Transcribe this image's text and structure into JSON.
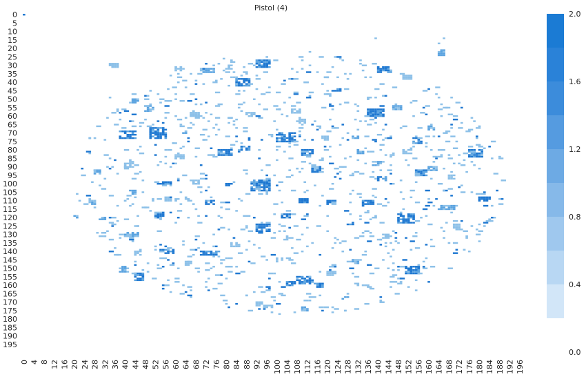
{
  "chart_data": {
    "type": "heatmap",
    "title": "Pistol (4)",
    "x_tick_labels": [
      "0",
      "4",
      "8",
      "12",
      "16",
      "20",
      "24",
      "28",
      "32",
      "36",
      "40",
      "44",
      "48",
      "52",
      "56",
      "60",
      "64",
      "68",
      "72",
      "76",
      "80",
      "84",
      "88",
      "92",
      "96",
      "100",
      "104",
      "108",
      "112",
      "116",
      "120",
      "124",
      "128",
      "132",
      "136",
      "140",
      "144",
      "148",
      "152",
      "156",
      "160",
      "164",
      "168",
      "172",
      "176",
      "180",
      "184",
      "188",
      "192",
      "196"
    ],
    "y_tick_labels": [
      "0",
      "5",
      "10",
      "15",
      "20",
      "25",
      "30",
      "35",
      "40",
      "45",
      "50",
      "55",
      "60",
      "65",
      "70",
      "75",
      "80",
      "85",
      "90",
      "95",
      "100",
      "105",
      "110",
      "115",
      "120",
      "125",
      "130",
      "135",
      "140",
      "145",
      "150",
      "155",
      "160",
      "165",
      "170",
      "175",
      "180",
      "185",
      "190",
      "195"
    ],
    "x_range": [
      0,
      199
    ],
    "y_range": [
      0,
      199
    ],
    "colorbar": {
      "min": 0.0,
      "max": 2.0,
      "tick_labels": [
        "0.0",
        "0.4",
        "0.8",
        "1.2",
        "1.6",
        "2.0"
      ],
      "colors": [
        "#d2e6f8",
        "#b8d7f3",
        "#9fc8ee",
        "#86b9e9",
        "#6daae4",
        "#559be0",
        "#3c8cdb",
        "#2a82d8",
        "#1b7bd4"
      ]
    },
    "cell_colors": {
      "low": "#8cc0e8",
      "mid": "#5aa3e0",
      "high": "#1f78d1"
    },
    "clusters": [
      {
        "x": 34,
        "y": 29,
        "w": 4,
        "h": 3,
        "v": 1.0
      },
      {
        "x": 43,
        "y": 50,
        "w": 3,
        "h": 3,
        "v": 1.2
      },
      {
        "x": 48,
        "y": 54,
        "w": 4,
        "h": 4,
        "v": 1.3
      },
      {
        "x": 38,
        "y": 69,
        "w": 7,
        "h": 5,
        "v": 1.8
      },
      {
        "x": 50,
        "y": 67,
        "w": 7,
        "h": 7,
        "v": 2.0
      },
      {
        "x": 60,
        "y": 31,
        "w": 4,
        "h": 3,
        "v": 1.0
      },
      {
        "x": 71,
        "y": 32,
        "w": 5,
        "h": 3,
        "v": 1.3
      },
      {
        "x": 80,
        "y": 30,
        "w": 3,
        "h": 3,
        "v": 1.0
      },
      {
        "x": 92,
        "y": 27,
        "w": 6,
        "h": 5,
        "v": 1.9
      },
      {
        "x": 84,
        "y": 38,
        "w": 6,
        "h": 5,
        "v": 1.9
      },
      {
        "x": 100,
        "y": 70,
        "w": 8,
        "h": 6,
        "v": 2.0
      },
      {
        "x": 110,
        "y": 80,
        "w": 5,
        "h": 4,
        "v": 1.8
      },
      {
        "x": 90,
        "y": 98,
        "w": 8,
        "h": 7,
        "v": 2.0
      },
      {
        "x": 92,
        "y": 124,
        "w": 6,
        "h": 5,
        "v": 1.8
      },
      {
        "x": 108,
        "y": 155,
        "w": 7,
        "h": 5,
        "v": 1.9
      },
      {
        "x": 115,
        "y": 159,
        "w": 4,
        "h": 3,
        "v": 1.9
      },
      {
        "x": 140,
        "y": 31,
        "w": 6,
        "h": 4,
        "v": 1.9
      },
      {
        "x": 136,
        "y": 56,
        "w": 7,
        "h": 5,
        "v": 1.7
      },
      {
        "x": 154,
        "y": 73,
        "w": 4,
        "h": 4,
        "v": 1.8
      },
      {
        "x": 176,
        "y": 80,
        "w": 6,
        "h": 5,
        "v": 1.9
      },
      {
        "x": 155,
        "y": 92,
        "w": 5,
        "h": 4,
        "v": 1.8
      },
      {
        "x": 148,
        "y": 118,
        "w": 7,
        "h": 6,
        "v": 1.9
      },
      {
        "x": 151,
        "y": 149,
        "w": 6,
        "h": 5,
        "v": 1.8
      },
      {
        "x": 134,
        "y": 110,
        "w": 5,
        "h": 4,
        "v": 1.7
      },
      {
        "x": 44,
        "y": 153,
        "w": 4,
        "h": 5,
        "v": 1.8
      },
      {
        "x": 54,
        "y": 139,
        "w": 6,
        "h": 3,
        "v": 1.8
      },
      {
        "x": 70,
        "y": 140,
        "w": 8,
        "h": 3,
        "v": 1.7
      },
      {
        "x": 77,
        "y": 80,
        "w": 6,
        "h": 4,
        "v": 1.7
      },
      {
        "x": 86,
        "y": 78,
        "w": 4,
        "h": 3,
        "v": 1.8
      },
      {
        "x": 72,
        "y": 110,
        "w": 4,
        "h": 3,
        "v": 1.7
      },
      {
        "x": 120,
        "y": 110,
        "w": 4,
        "h": 3,
        "v": 1.6
      },
      {
        "x": 109,
        "y": 109,
        "w": 4,
        "h": 3,
        "v": 1.7
      },
      {
        "x": 114,
        "y": 90,
        "w": 4,
        "h": 4,
        "v": 1.6
      },
      {
        "x": 140,
        "y": 96,
        "w": 4,
        "h": 3,
        "v": 1.8
      },
      {
        "x": 164,
        "y": 113,
        "w": 7,
        "h": 3,
        "v": 1.4
      },
      {
        "x": 180,
        "y": 108,
        "w": 5,
        "h": 3,
        "v": 1.8
      },
      {
        "x": 55,
        "y": 99,
        "w": 4,
        "h": 2,
        "v": 1.8
      },
      {
        "x": 52,
        "y": 117,
        "w": 4,
        "h": 4,
        "v": 1.6
      },
      {
        "x": 40,
        "y": 129,
        "w": 6,
        "h": 3,
        "v": 1.3
      },
      {
        "x": 38,
        "y": 149,
        "w": 4,
        "h": 4,
        "v": 1.2
      },
      {
        "x": 102,
        "y": 118,
        "w": 4,
        "h": 3,
        "v": 1.6
      },
      {
        "x": 104,
        "y": 158,
        "w": 4,
        "h": 3,
        "v": 1.8
      },
      {
        "x": 128,
        "y": 123,
        "w": 3,
        "h": 2,
        "v": 1.8
      },
      {
        "x": 62,
        "y": 69,
        "w": 3,
        "h": 2,
        "v": 1.5
      },
      {
        "x": 96,
        "y": 161,
        "w": 2,
        "h": 2,
        "v": 1.8
      },
      {
        "x": 124,
        "y": 44,
        "w": 2,
        "h": 2,
        "v": 1.8
      },
      {
        "x": 164,
        "y": 21,
        "w": 3,
        "h": 4,
        "v": 1.4
      },
      {
        "x": 20,
        "y": 119,
        "w": 2,
        "h": 2,
        "v": 1.3
      },
      {
        "x": 26,
        "y": 110,
        "w": 3,
        "h": 3,
        "v": 1.2
      },
      {
        "x": 30,
        "y": 120,
        "w": 3,
        "h": 2,
        "v": 1.1
      },
      {
        "x": 60,
        "y": 83,
        "w": 4,
        "h": 3,
        "v": 1.0
      },
      {
        "x": 66,
        "y": 58,
        "w": 4,
        "h": 3,
        "v": 0.9
      },
      {
        "x": 88,
        "y": 58,
        "w": 4,
        "h": 3,
        "v": 1.0
      },
      {
        "x": 106,
        "y": 56,
        "w": 4,
        "h": 3,
        "v": 1.0
      },
      {
        "x": 130,
        "y": 71,
        "w": 3,
        "h": 3,
        "v": 1.2
      },
      {
        "x": 132,
        "y": 80,
        "w": 3,
        "h": 3,
        "v": 1.2
      },
      {
        "x": 138,
        "y": 87,
        "w": 4,
        "h": 3,
        "v": 1.4
      },
      {
        "x": 146,
        "y": 54,
        "w": 4,
        "h": 3,
        "v": 1.1
      },
      {
        "x": 160,
        "y": 90,
        "w": 4,
        "h": 3,
        "v": 1.2
      },
      {
        "x": 142,
        "y": 130,
        "w": 4,
        "h": 3,
        "v": 1.0
      },
      {
        "x": 130,
        "y": 145,
        "w": 4,
        "h": 3,
        "v": 1.1
      },
      {
        "x": 120,
        "y": 152,
        "w": 4,
        "h": 3,
        "v": 1.0
      },
      {
        "x": 126,
        "y": 167,
        "w": 3,
        "h": 2,
        "v": 1.3
      },
      {
        "x": 110,
        "y": 173,
        "w": 3,
        "h": 3,
        "v": 1.2
      },
      {
        "x": 92,
        "y": 170,
        "w": 3,
        "h": 3,
        "v": 0.9
      },
      {
        "x": 82,
        "y": 135,
        "w": 4,
        "h": 3,
        "v": 1.0
      },
      {
        "x": 80,
        "y": 100,
        "w": 3,
        "h": 2,
        "v": 1.7
      },
      {
        "x": 66,
        "y": 98,
        "w": 4,
        "h": 3,
        "v": 1.0
      },
      {
        "x": 108,
        "y": 62,
        "w": 4,
        "h": 3,
        "v": 0.9
      },
      {
        "x": 118,
        "y": 72,
        "w": 3,
        "h": 3,
        "v": 1.0
      },
      {
        "x": 150,
        "y": 36,
        "w": 4,
        "h": 3,
        "v": 0.9
      },
      {
        "x": 150,
        "y": 80,
        "w": 4,
        "h": 3,
        "v": 1.0
      },
      {
        "x": 168,
        "y": 95,
        "w": 3,
        "h": 3,
        "v": 1.0
      },
      {
        "x": 170,
        "y": 124,
        "w": 3,
        "h": 3,
        "v": 1.0
      },
      {
        "x": 160,
        "y": 66,
        "w": 3,
        "h": 3,
        "v": 1.1
      },
      {
        "x": 40,
        "y": 88,
        "w": 4,
        "h": 3,
        "v": 1.0
      },
      {
        "x": 42,
        "y": 104,
        "w": 3,
        "h": 3,
        "v": 1.3
      },
      {
        "x": 28,
        "y": 92,
        "w": 3,
        "h": 3,
        "v": 1.2
      },
      {
        "x": 56,
        "y": 108,
        "w": 3,
        "h": 3,
        "v": 1.0
      },
      {
        "x": 44,
        "y": 140,
        "w": 3,
        "h": 3,
        "v": 1.0
      },
      {
        "x": 64,
        "y": 146,
        "w": 3,
        "h": 3,
        "v": 1.0
      },
      {
        "x": 100,
        "y": 144,
        "w": 3,
        "h": 3,
        "v": 1.0
      }
    ]
  }
}
